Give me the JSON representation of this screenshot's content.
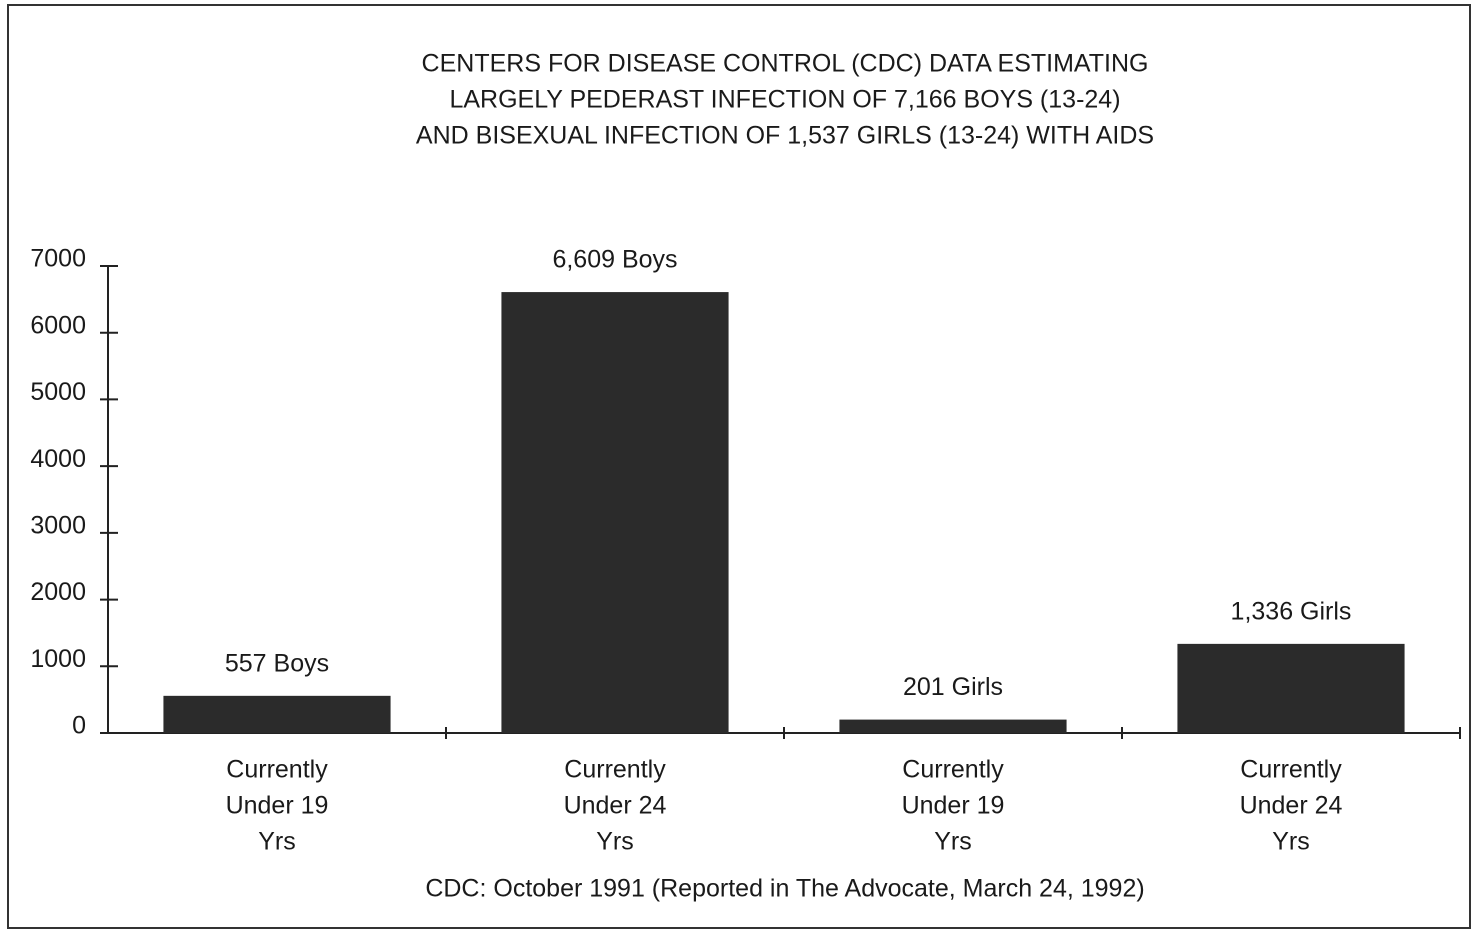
{
  "chart_data": {
    "type": "bar",
    "title": [
      "CENTERS FOR DISEASE CONTROL (CDC) DATA ESTIMATING",
      "LARGELY PEDERAST INFECTION OF 7,166 BOYS (13-24)",
      "AND BISEXUAL INFECTION OF 1,537 GIRLS (13-24) WITH AIDS"
    ],
    "categories": [
      [
        "Currently",
        "Under 19",
        "Yrs"
      ],
      [
        "Currently",
        "Under 24",
        "Yrs"
      ],
      [
        "Currently",
        "Under 19",
        "Yrs"
      ],
      [
        "Currently",
        "Under 24",
        "Yrs"
      ]
    ],
    "values": [
      557,
      6609,
      201,
      1336
    ],
    "value_labels": [
      "557 Boys",
      "6,609 Boys",
      "201 Girls",
      "1,336 Girls"
    ],
    "color": "#2b2b2b",
    "ylim": [
      0,
      7000
    ],
    "yticks": [
      0,
      1000,
      2000,
      3000,
      4000,
      5000,
      6000,
      7000
    ],
    "grid": false,
    "source": "CDC: October 1991 (Reported in The Advocate, March 24, 1992)"
  }
}
